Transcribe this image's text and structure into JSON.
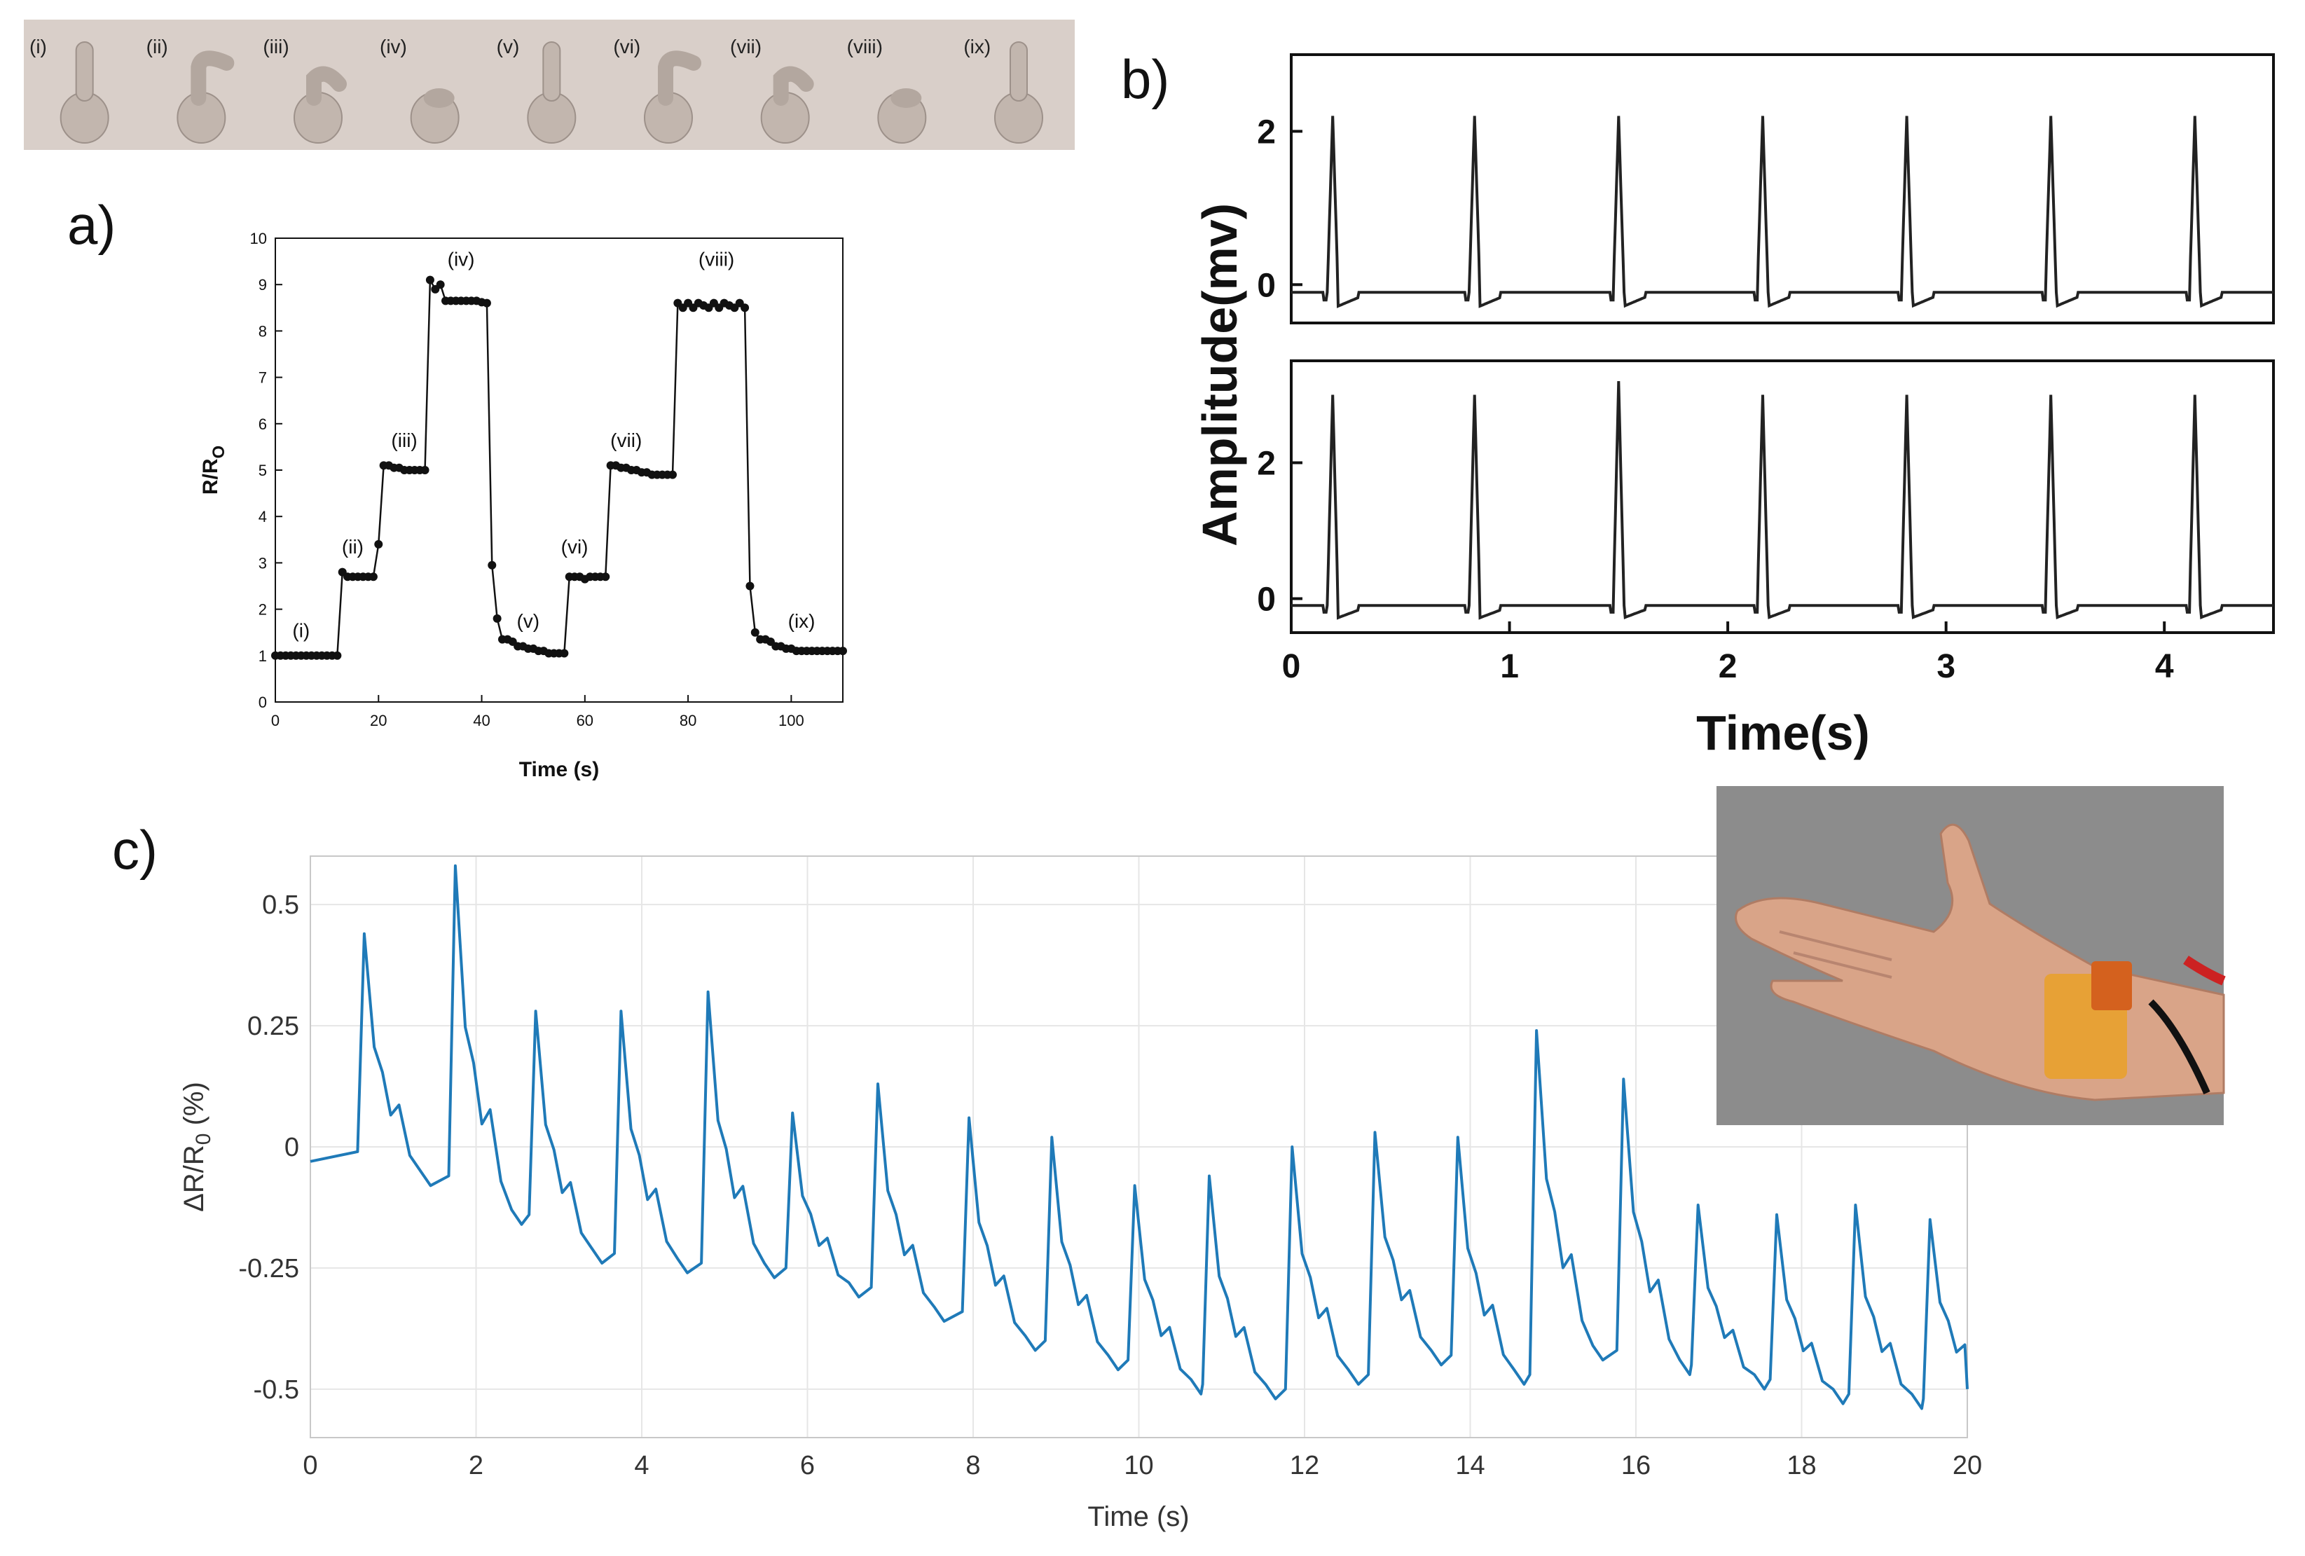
{
  "panel_labels": {
    "a": "a)",
    "b": "b)",
    "c": "c)"
  },
  "gesture_strip": {
    "labels": [
      "(i)",
      "(ii)",
      "(iii)",
      "(iv)",
      "(v)",
      "(vi)",
      "(vii)",
      "(viii)",
      "(ix)"
    ],
    "poses": [
      "up",
      "bent",
      "curl",
      "fist",
      "up",
      "bent",
      "curl",
      "fist",
      "up"
    ]
  },
  "colors": {
    "line_c": "#1f7ab8",
    "trace": "#222222",
    "strip_bg": "#d9cfc9",
    "photo_bg": "#8c8c8c"
  },
  "chart_data": [
    {
      "id": "a",
      "type": "line",
      "title": "",
      "xlabel": "Time (s)",
      "ylabel_main": "R/R",
      "ylabel_sub": "O",
      "xlim": [
        0,
        110
      ],
      "ylim": [
        0,
        10
      ],
      "xticks": [
        0,
        20,
        40,
        60,
        80,
        100
      ],
      "yticks": [
        0,
        1,
        2,
        3,
        4,
        5,
        6,
        7,
        8,
        9,
        10
      ],
      "x": [
        0,
        1,
        2,
        3,
        4,
        5,
        6,
        7,
        8,
        9,
        10,
        11,
        12,
        13,
        14,
        15,
        16,
        17,
        18,
        19,
        20,
        21,
        22,
        23,
        24,
        25,
        26,
        27,
        28,
        29,
        30,
        31,
        32,
        33,
        34,
        35,
        36,
        37,
        38,
        39,
        40,
        41,
        42,
        43,
        44,
        45,
        46,
        47,
        48,
        49,
        50,
        51,
        52,
        53,
        54,
        55,
        56,
        57,
        58,
        59,
        60,
        61,
        62,
        63,
        64,
        65,
        66,
        67,
        68,
        69,
        70,
        71,
        72,
        73,
        74,
        75,
        76,
        77,
        78,
        79,
        80,
        81,
        82,
        83,
        84,
        85,
        86,
        87,
        88,
        89,
        90,
        91,
        92,
        93,
        94,
        95,
        96,
        97,
        98,
        99,
        100,
        101,
        102,
        103,
        104,
        105,
        106,
        107,
        108,
        109,
        110
      ],
      "y": [
        1,
        1,
        1,
        1,
        1,
        1,
        1,
        1,
        1,
        1,
        1,
        1,
        1,
        2.8,
        2.7,
        2.7,
        2.7,
        2.7,
        2.7,
        2.7,
        3.4,
        5.1,
        5.1,
        5.05,
        5.05,
        5.0,
        5.0,
        5.0,
        5.0,
        5.0,
        9.1,
        8.9,
        9.0,
        8.65,
        8.65,
        8.65,
        8.65,
        8.65,
        8.65,
        8.65,
        8.62,
        8.6,
        2.95,
        1.8,
        1.35,
        1.35,
        1.3,
        1.2,
        1.2,
        1.15,
        1.15,
        1.1,
        1.1,
        1.05,
        1.05,
        1.05,
        1.05,
        2.7,
        2.7,
        2.7,
        2.65,
        2.7,
        2.7,
        2.7,
        2.7,
        5.1,
        5.1,
        5.05,
        5.05,
        5.0,
        5.0,
        4.95,
        4.95,
        4.9,
        4.9,
        4.9,
        4.9,
        4.9,
        8.6,
        8.5,
        8.6,
        8.5,
        8.6,
        8.55,
        8.5,
        8.6,
        8.5,
        8.6,
        8.55,
        8.5,
        8.6,
        8.5,
        2.5,
        1.5,
        1.35,
        1.35,
        1.3,
        1.2,
        1.2,
        1.15,
        1.15,
        1.1,
        1.1,
        1.1,
        1.1,
        1.1,
        1.1,
        1.1,
        1.1,
        1.1,
        1.1
      ],
      "annotations": [
        {
          "text": "(i)",
          "x": 5,
          "y": 1.4
        },
        {
          "text": "(ii)",
          "x": 15,
          "y": 3.2
        },
        {
          "text": "(iii)",
          "x": 25,
          "y": 5.5
        },
        {
          "text": "(iv)",
          "x": 36,
          "y": 9.4
        },
        {
          "text": "(v)",
          "x": 49,
          "y": 1.6
        },
        {
          "text": "(vi)",
          "x": 58,
          "y": 3.2
        },
        {
          "text": "(vii)",
          "x": 68,
          "y": 5.5
        },
        {
          "text": "(viii)",
          "x": 85.5,
          "y": 9.4
        },
        {
          "text": "(ix)",
          "x": 102,
          "y": 1.6
        }
      ]
    },
    {
      "id": "b",
      "type": "line",
      "title": "",
      "xlabel": "Time(s)",
      "ylabel": "Amplitude(mv)",
      "xlim": [
        0,
        4.5
      ],
      "xticks": [
        0,
        1,
        2,
        3,
        4
      ],
      "subplots": [
        {
          "ylim": [
            -0.5,
            3.0
          ],
          "yticks": [
            0,
            2
          ],
          "beat_times": [
            0.19,
            0.84,
            1.5,
            2.16,
            2.82,
            3.48,
            4.14
          ],
          "peaks": [
            2.2,
            2.2,
            2.2,
            2.2,
            2.2,
            2.2,
            2.2
          ],
          "baseline": -0.1
        },
        {
          "ylim": [
            -0.5,
            3.5
          ],
          "yticks": [
            0,
            2
          ],
          "beat_times": [
            0.19,
            0.84,
            1.5,
            2.16,
            2.82,
            3.48,
            4.14
          ],
          "peaks": [
            3.0,
            3.0,
            3.2,
            3.0,
            3.0,
            3.0,
            3.0
          ],
          "baseline": -0.1
        }
      ]
    },
    {
      "id": "c",
      "type": "line",
      "title": "",
      "xlabel": "Time (s)",
      "ylabel_main": "ΔR/R",
      "ylabel_sub": "0",
      "ylabel_unit": " (%)",
      "xlim": [
        0,
        20
      ],
      "ylim": [
        -0.6,
        0.6
      ],
      "xticks": [
        0,
        2,
        4,
        6,
        8,
        10,
        12,
        14,
        16,
        18,
        20
      ],
      "yticks": [
        0.5,
        0.25,
        0,
        -0.25,
        -0.5
      ],
      "ytick_labels": [
        "0.5",
        "0.25",
        "0",
        "-0.25",
        "-0.5"
      ],
      "start": {
        "x": 0.0,
        "y": -0.03
      },
      "beats": [
        {
          "t": 0.65,
          "peak": 0.44,
          "trough": -0.08
        },
        {
          "t": 1.75,
          "peak": 0.58,
          "trough": -0.16
        },
        {
          "t": 2.72,
          "peak": 0.28,
          "trough": -0.24
        },
        {
          "t": 3.75,
          "peak": 0.28,
          "trough": -0.26
        },
        {
          "t": 4.8,
          "peak": 0.32,
          "trough": -0.27
        },
        {
          "t": 5.82,
          "peak": 0.07,
          "trough": -0.31
        },
        {
          "t": 6.85,
          "peak": 0.13,
          "trough": -0.36
        },
        {
          "t": 7.95,
          "peak": 0.06,
          "trough": -0.42
        },
        {
          "t": 8.95,
          "peak": 0.02,
          "trough": -0.46
        },
        {
          "t": 9.95,
          "peak": -0.08,
          "trough": -0.51
        },
        {
          "t": 10.85,
          "peak": -0.06,
          "trough": -0.52
        },
        {
          "t": 11.85,
          "peak": 0.0,
          "trough": -0.49
        },
        {
          "t": 12.85,
          "peak": 0.03,
          "trough": -0.45
        },
        {
          "t": 13.85,
          "peak": 0.02,
          "trough": -0.49
        },
        {
          "t": 14.8,
          "peak": 0.24,
          "trough": -0.44
        },
        {
          "t": 15.85,
          "peak": 0.14,
          "trough": -0.47
        },
        {
          "t": 16.75,
          "peak": -0.12,
          "trough": -0.5
        },
        {
          "t": 17.7,
          "peak": -0.14,
          "trough": -0.53
        },
        {
          "t": 18.65,
          "peak": -0.12,
          "trough": -0.54
        },
        {
          "t": 19.55,
          "peak": -0.15,
          "trough": -0.53
        }
      ],
      "end": {
        "x": 20.0,
        "y": -0.5
      },
      "inset_photo": "wrist-sensor-photo"
    }
  ]
}
